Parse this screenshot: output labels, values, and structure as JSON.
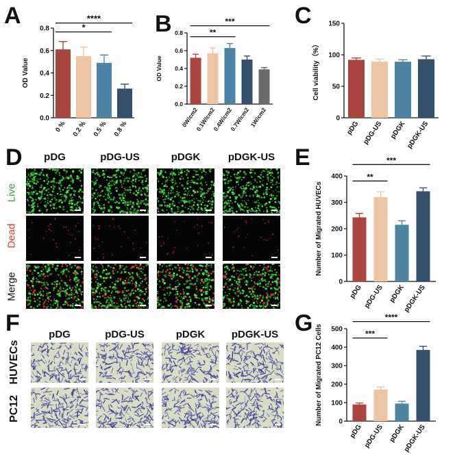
{
  "panels": {
    "A": "A",
    "B": "B",
    "C": "C",
    "D": "D",
    "E": "E",
    "F": "F",
    "G": "G"
  },
  "colors": {
    "red": "#A8453F",
    "peach": "#EFC4A3",
    "blue": "#4E84A3",
    "navy": "#34506D",
    "gray": "#6A6A6A"
  },
  "chart_data": [
    {
      "id": "A",
      "type": "bar",
      "ylabel": "OD Value",
      "ylim": [
        0,
        0.8
      ],
      "yticks": [
        "0.0",
        "0.2",
        "0.4",
        "0.6",
        "0.8"
      ],
      "categories": [
        "0 %",
        "0.2 %",
        "0.5 %",
        "0.8 %"
      ],
      "values": [
        0.61,
        0.55,
        0.49,
        0.26
      ],
      "errors": [
        0.07,
        0.08,
        0.07,
        0.04
      ],
      "significance": [
        {
          "from": 0,
          "to": 2,
          "label": "*"
        },
        {
          "from": 0,
          "to": 3,
          "label": "****"
        }
      ]
    },
    {
      "id": "B",
      "type": "bar",
      "ylabel": "OD Value",
      "ylim": [
        0,
        0.8
      ],
      "yticks": [
        "0.0",
        "0.2",
        "0.4",
        "0.6",
        "0.8"
      ],
      "categories": [
        "0W/cm2",
        "0.1W/cm2",
        "0.4W/cm2",
        "0.7W/cm2",
        "1W/cm2"
      ],
      "values": [
        0.52,
        0.57,
        0.63,
        0.5,
        0.39
      ],
      "errors": [
        0.04,
        0.06,
        0.05,
        0.04,
        0.02
      ],
      "significance": [
        {
          "from": 0,
          "to": 2,
          "label": "**"
        },
        {
          "from": 0,
          "to": 4,
          "label": "***"
        }
      ]
    },
    {
      "id": "C",
      "type": "bar",
      "ylabel": "Cell viability（%）",
      "ylim": [
        0,
        150
      ],
      "yticks": [
        "0",
        "50",
        "100",
        "150"
      ],
      "categories": [
        "pDG",
        "pDG-US",
        "pDGK",
        "pDGK-US"
      ],
      "values": [
        92,
        89,
        89,
        93
      ],
      "errors": [
        3,
        4,
        3,
        5
      ],
      "significance": []
    },
    {
      "id": "E",
      "type": "bar",
      "ylabel": "Number of Migrated HUVECs",
      "ylim": [
        0,
        400
      ],
      "yticks": [
        "0",
        "100",
        "200",
        "300",
        "400"
      ],
      "categories": [
        "pDG",
        "pDG-US",
        "pDGK",
        "pDGK-US"
      ],
      "values": [
        243,
        320,
        215,
        342
      ],
      "errors": [
        15,
        20,
        15,
        13
      ],
      "significance": [
        {
          "from": 0,
          "to": 1,
          "label": "**"
        },
        {
          "from": 0,
          "to": 3,
          "label": "***"
        }
      ]
    },
    {
      "id": "G",
      "type": "bar",
      "ylabel": "Number of Migrated PC12 Cells",
      "ylim": [
        0,
        500
      ],
      "yticks": [
        "0",
        "100",
        "200",
        "300",
        "400",
        "500"
      ],
      "categories": [
        "pDG",
        "pDG-US",
        "pDGK",
        "pDGK-US"
      ],
      "values": [
        90,
        170,
        95,
        385
      ],
      "errors": [
        8,
        15,
        12,
        20
      ],
      "significance": [
        {
          "from": 0,
          "to": 1,
          "label": "***"
        },
        {
          "from": 0,
          "to": 3,
          "label": "****"
        }
      ]
    }
  ],
  "panel_D": {
    "columns": [
      "pDG",
      "pDG-US",
      "pDGK",
      "pDGK-US"
    ],
    "rows": [
      "Live",
      "Dead",
      "Merge"
    ],
    "row_colors": [
      "#3a9a45",
      "#d53b3b",
      "#111111"
    ]
  },
  "panel_F": {
    "columns": [
      "pDG",
      "pDG-US",
      "pDGK",
      "pDGK-US"
    ],
    "rows": [
      "HUVECs",
      "PC12"
    ]
  }
}
